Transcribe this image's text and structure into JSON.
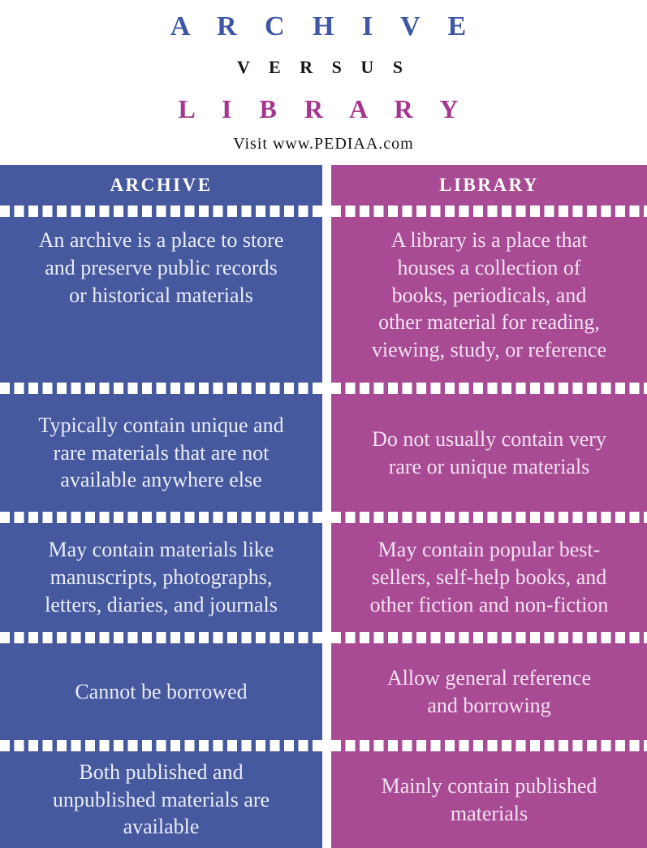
{
  "title": {
    "archive": "A R C H I V E",
    "versus": "V E R S U S",
    "library": "L I B R A R Y",
    "visit": "Visit www.PEDIAA.com"
  },
  "colors": {
    "archive_bg": "#46589e",
    "library_bg": "#a84b94",
    "archive_title": "#3d56a6",
    "library_title": "#a6358f",
    "versus_text": "#161616",
    "separator": "#ffffff"
  },
  "table": {
    "columns": [
      {
        "header": "ARCHIVE",
        "rows": [
          "An archive is a place to store\nand preserve public records\nor historical materials",
          "Typically contain unique and\nrare materials that are not\navailable anywhere else",
          "May contain materials like\nmanuscripts, photographs,\nletters, diaries, and journals",
          "Cannot be borrowed",
          "Both published and\nunpublished materials are\navailable"
        ]
      },
      {
        "header": "LIBRARY",
        "rows": [
          "A library is a place that\nhouses a collection of\nbooks, periodicals, and\nother material for reading,\nviewing, study, or reference",
          "Do not usually contain very\nrare or unique materials",
          "May contain popular best-\nsellers, self-help books, and\nother fiction and non-fiction",
          "Allow general reference\nand borrowing",
          "Mainly contain published\nmaterials"
        ]
      }
    ]
  }
}
